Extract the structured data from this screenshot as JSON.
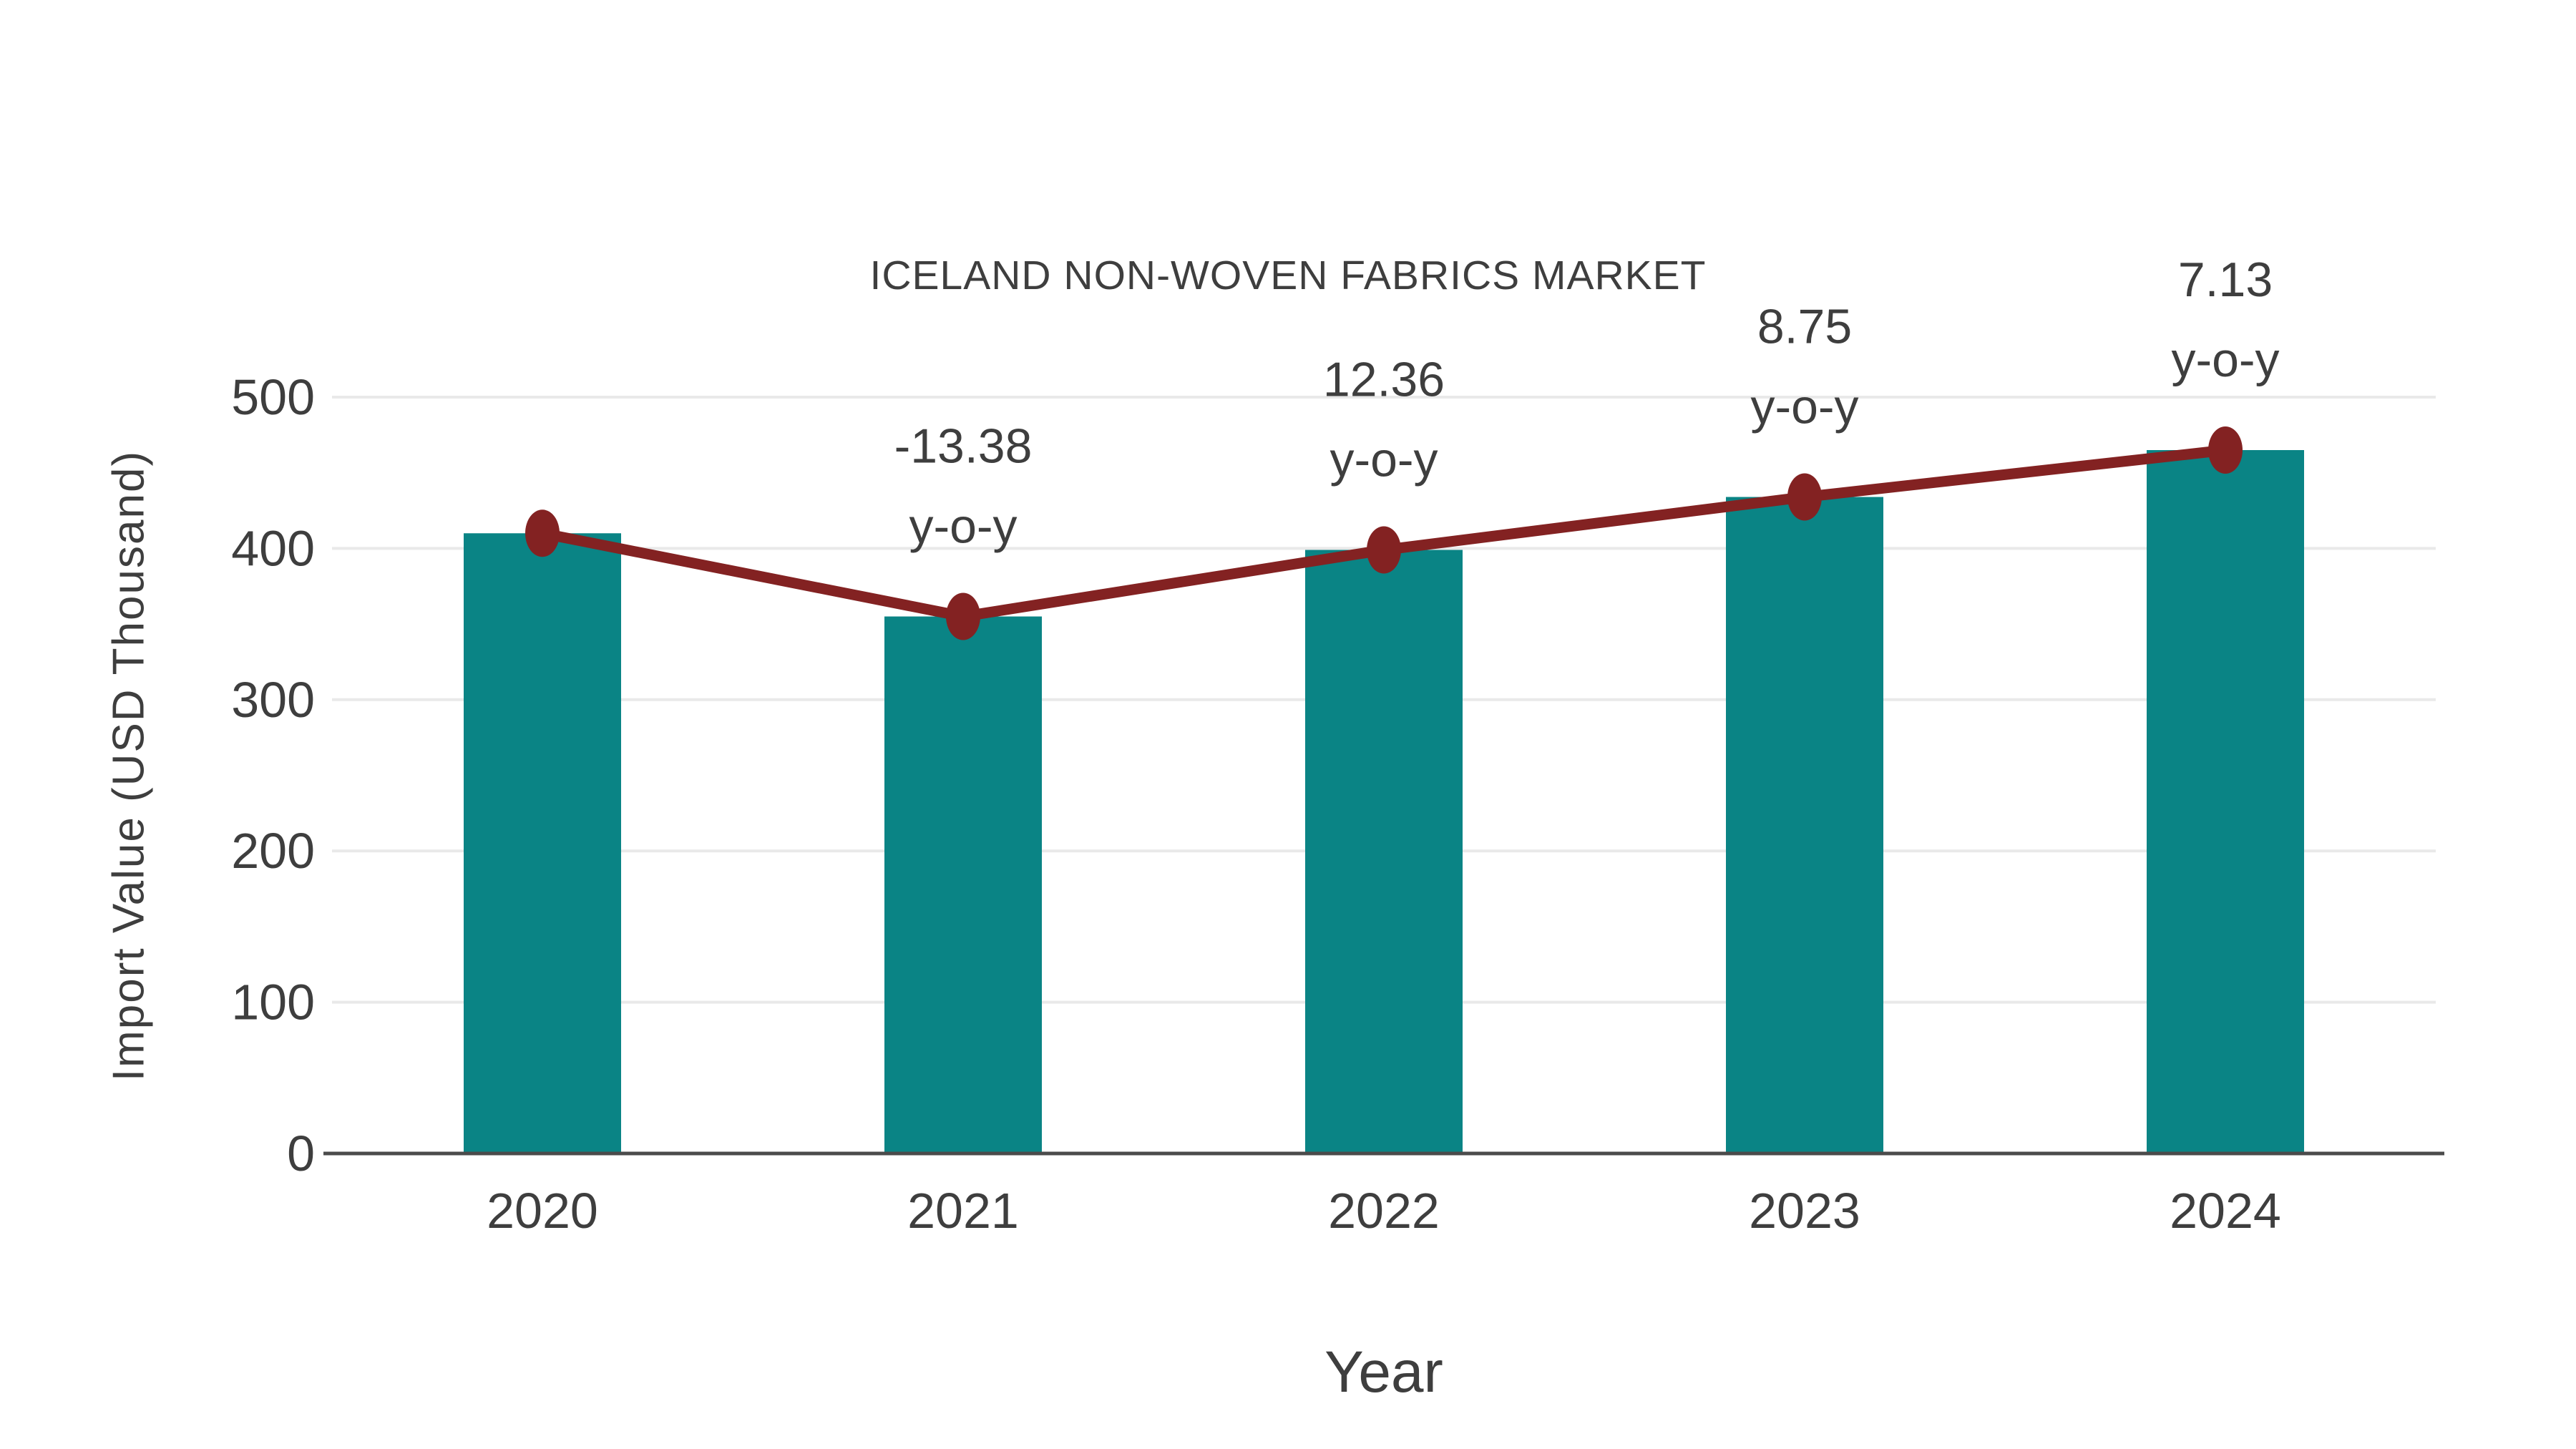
{
  "title": "ICELAND NON-WOVEN FABRICS MARKET",
  "chart_data": {
    "type": "bar",
    "title": "ICELAND NON-WOVEN FABRICS MARKET",
    "categories": [
      "2020",
      "2021",
      "2022",
      "2023",
      "2024"
    ],
    "series": [
      {
        "name": "Import Value",
        "type": "bar",
        "color": "#0a8485",
        "values": [
          410,
          355,
          399,
          434,
          465
        ]
      },
      {
        "name": "y-o-y trend line",
        "type": "line",
        "color": "#832222",
        "values": [
          410,
          355,
          399,
          434,
          465
        ]
      }
    ],
    "annotations": [
      {
        "category": "2021",
        "label": "-13.38",
        "sub": "y-o-y"
      },
      {
        "category": "2022",
        "label": "12.36",
        "sub": "y-o-y"
      },
      {
        "category": "2023",
        "label": "8.75",
        "sub": "y-o-y"
      },
      {
        "category": "2024",
        "label": "7.13",
        "sub": "y-o-y"
      }
    ],
    "xlabel": "Year",
    "ylabel": "Import Value (USD Thousand)",
    "ylim": [
      0,
      500
    ],
    "yticks": [
      0,
      100,
      200,
      300,
      400,
      500
    ],
    "grid": true,
    "legend": false,
    "colors": {
      "grid": "#e9e9e9",
      "axis": "#4b4b4b",
      "text": "#3e3e3e"
    }
  }
}
